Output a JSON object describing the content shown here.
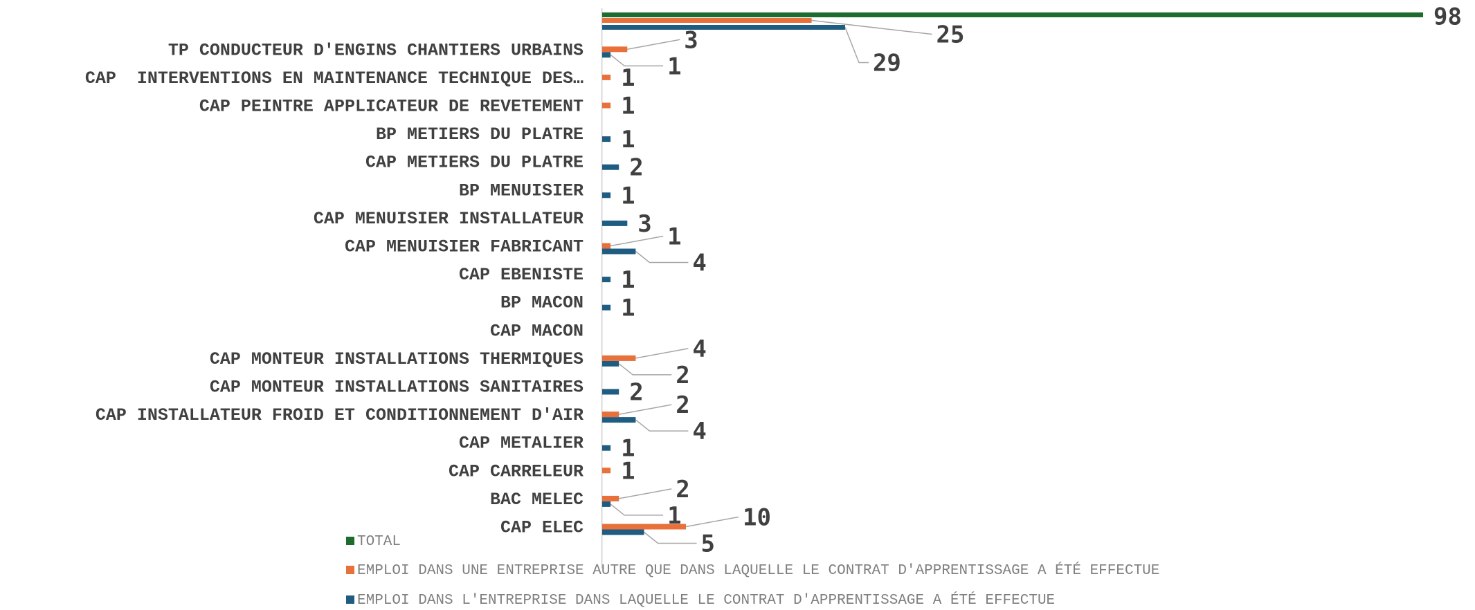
{
  "chart_data": {
    "type": "bar",
    "orientation": "horizontal",
    "categories": [
      "CAP ELEC",
      "BAC MELEC",
      "CAP CARRELEUR",
      "CAP METALIER",
      "CAP INSTALLATEUR FROID ET CONDITIONNEMENT D'AIR",
      "CAP MONTEUR INSTALLATIONS SANITAIRES",
      "CAP MONTEUR INSTALLATIONS THERMIQUES",
      "CAP MACON",
      "BP MACON",
      "CAP EBENISTE",
      "CAP MENUISIER FABRICANT",
      "CAP MENUISIER INSTALLATEUR",
      "BP MENUISIER",
      "CAP METIERS DU PLATRE",
      "BP METIERS DU PLATRE",
      "CAP PEINTRE APPLICATEUR DE REVETEMENT",
      "CAP  INTERVENTIONS EN MAINTENANCE TECHNIQUE DES…",
      "TP CONDUCTEUR D'ENGINS CHANTIERS URBAINS",
      ""
    ],
    "series": [
      {
        "name": "EMPLOI DANS L'ENTREPRISE DANS LAQUELLE LE CONTRAT D'APPRENTISSAGE A ÉTÉ EFFECTUE",
        "color": "#1F5C82",
        "values": [
          5,
          1,
          null,
          1,
          4,
          2,
          2,
          null,
          1,
          1,
          4,
          3,
          1,
          2,
          1,
          null,
          null,
          1,
          29
        ]
      },
      {
        "name": "EMPLOI DANS UNE ENTREPRISE AUTRE QUE DANS LAQUELLE LE CONTRAT D'APPRENTISSAGE A ÉTÉ EFFECTUE",
        "color": "#E8703A",
        "values": [
          10,
          2,
          1,
          null,
          2,
          null,
          4,
          null,
          null,
          null,
          1,
          null,
          null,
          null,
          null,
          1,
          1,
          3,
          25
        ]
      },
      {
        "name": "TOTAL",
        "color": "#1E6B2E",
        "values": [
          null,
          null,
          null,
          null,
          null,
          null,
          null,
          null,
          null,
          null,
          null,
          null,
          null,
          null,
          null,
          null,
          null,
          null,
          98
        ]
      }
    ],
    "xlim": [
      0,
      98
    ],
    "grid": false,
    "legend_position": "bottom-left"
  }
}
